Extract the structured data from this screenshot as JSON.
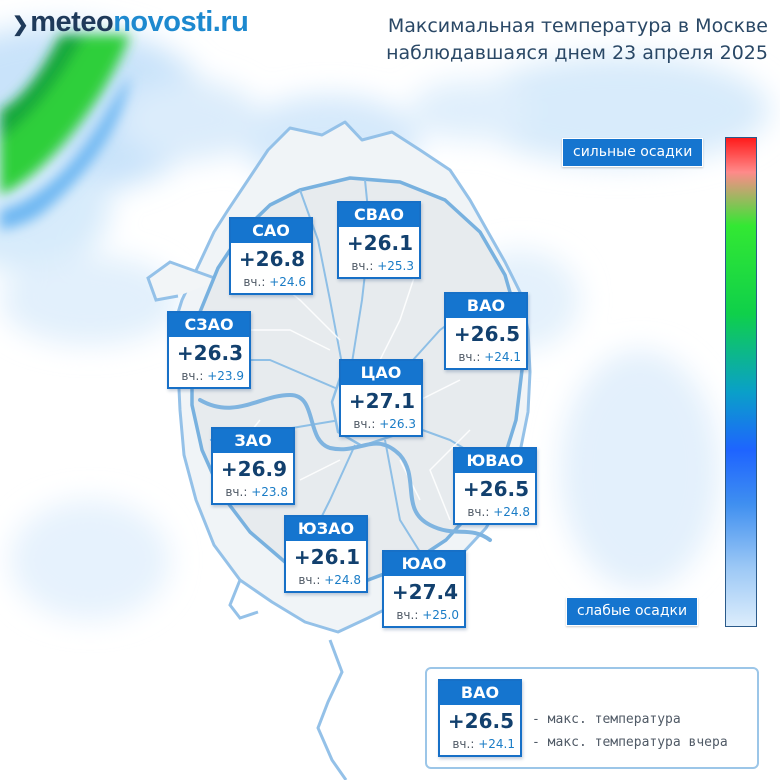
{
  "brand": {
    "logo_mark": "❯",
    "logo_part1": "meteo",
    "logo_part2": "novosti.ru"
  },
  "title": {
    "line1": "Максимальная температура в Москве",
    "line2": "наблюдавшаяся днем 23 апреля 2025"
  },
  "map": {
    "prev_label": "вч.:",
    "districts": [
      {
        "name": "САО",
        "temp": "+26.8",
        "prev": "+24.6"
      },
      {
        "name": "СВАО",
        "temp": "+26.1",
        "prev": "+25.3"
      },
      {
        "name": "СЗАО",
        "temp": "+26.3",
        "prev": "+23.9"
      },
      {
        "name": "ВАО",
        "temp": "+26.5",
        "prev": "+24.1"
      },
      {
        "name": "ЦАО",
        "temp": "+27.1",
        "prev": "+26.3"
      },
      {
        "name": "ЗАО",
        "temp": "+26.9",
        "prev": "+23.8"
      },
      {
        "name": "ЮВАО",
        "temp": "+26.5",
        "prev": "+24.8"
      },
      {
        "name": "ЮЗАО",
        "temp": "+26.1",
        "prev": "+24.8"
      },
      {
        "name": "ЮАО",
        "temp": "+27.4",
        "prev": "+25.0"
      }
    ]
  },
  "precip_scale": {
    "top_label": "сильные осадки",
    "bottom_label": "слабые осадки",
    "colors": [
      "#ff1b1b",
      "#33e833",
      "#1e64ff",
      "#dcedfc"
    ]
  },
  "legend": {
    "sample": {
      "name": "ВАО",
      "temp": "+26.5",
      "prev": "+24.1"
    },
    "max_label": "- макс. температура",
    "prev_label": "- макс. температура вчера"
  },
  "colors": {
    "accent": "#1575cf",
    "border": "#1770c7",
    "temp_text": "#12406e",
    "prev_text": "#1a7cc6",
    "city_outline": "#7fb4e0"
  }
}
